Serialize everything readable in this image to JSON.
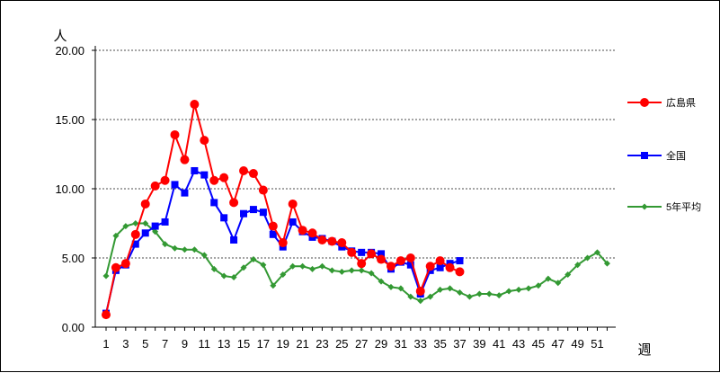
{
  "chart_data": {
    "type": "line",
    "y_unit_label": "人",
    "x_unit_label": "週",
    "ylim": [
      0,
      20
    ],
    "y_ticks": [
      "0.00",
      "5.00",
      "10.00",
      "15.00",
      "20.00"
    ],
    "x_ticks": [
      "1",
      "3",
      "5",
      "7",
      "9",
      "11",
      "13",
      "15",
      "17",
      "19",
      "21",
      "23",
      "25",
      "27",
      "29",
      "31",
      "33",
      "35",
      "37",
      "39",
      "41",
      "43",
      "45",
      "47",
      "49",
      "51"
    ],
    "xlim": [
      1,
      52
    ],
    "grid": "horizontal dashed",
    "legend_position": "right",
    "series": [
      {
        "name": "広島県",
        "color": "#ff0000",
        "marker": "circle",
        "x": [
          1,
          2,
          3,
          4,
          5,
          6,
          7,
          8,
          9,
          10,
          11,
          12,
          13,
          14,
          15,
          16,
          17,
          18,
          19,
          20,
          21,
          22,
          23,
          24,
          25,
          26,
          27,
          28,
          29,
          30,
          31,
          32,
          33,
          34,
          35,
          36,
          37
        ],
        "values": [
          0.9,
          4.3,
          4.6,
          6.7,
          8.9,
          10.2,
          10.6,
          13.9,
          12.1,
          16.1,
          13.5,
          10.6,
          10.8,
          9.0,
          11.3,
          11.1,
          9.9,
          7.3,
          6.1,
          8.9,
          7.0,
          6.8,
          6.3,
          6.2,
          6.1,
          5.4,
          4.6,
          5.3,
          4.9,
          4.4,
          4.8,
          5.0,
          2.6,
          4.4,
          4.8,
          4.3,
          4.0
        ]
      },
      {
        "name": "全国",
        "color": "#0000ff",
        "marker": "square",
        "x": [
          1,
          2,
          3,
          4,
          5,
          6,
          7,
          8,
          9,
          10,
          11,
          12,
          13,
          14,
          15,
          16,
          17,
          18,
          19,
          20,
          21,
          22,
          23,
          24,
          25,
          26,
          27,
          28,
          29,
          30,
          31,
          32,
          33,
          34,
          35,
          36,
          37
        ],
        "values": [
          1.0,
          4.1,
          4.5,
          6.0,
          6.8,
          7.3,
          7.6,
          10.3,
          9.7,
          11.3,
          11.0,
          9.0,
          7.9,
          6.3,
          8.2,
          8.5,
          8.3,
          6.7,
          5.8,
          7.6,
          6.9,
          6.5,
          6.4,
          6.2,
          5.8,
          5.5,
          5.4,
          5.4,
          5.3,
          4.2,
          4.7,
          4.5,
          2.4,
          4.1,
          4.3,
          4.6,
          4.8
        ]
      },
      {
        "name": "5年平均",
        "color": "#339933",
        "marker": "diamond",
        "x": [
          1,
          2,
          3,
          4,
          5,
          6,
          7,
          8,
          9,
          10,
          11,
          12,
          13,
          14,
          15,
          16,
          17,
          18,
          19,
          20,
          21,
          22,
          23,
          24,
          25,
          26,
          27,
          28,
          29,
          30,
          31,
          32,
          33,
          34,
          35,
          36,
          37,
          38,
          39,
          40,
          41,
          42,
          43,
          44,
          45,
          46,
          47,
          48,
          49,
          50,
          51,
          52
        ],
        "values": [
          3.7,
          6.6,
          7.3,
          7.5,
          7.5,
          6.9,
          6.0,
          5.7,
          5.6,
          5.6,
          5.2,
          4.2,
          3.7,
          3.6,
          4.3,
          4.9,
          4.5,
          3.0,
          3.8,
          4.4,
          4.4,
          4.2,
          4.4,
          4.1,
          4.0,
          4.1,
          4.1,
          3.9,
          3.3,
          2.9,
          2.8,
          2.2,
          1.9,
          2.2,
          2.7,
          2.8,
          2.5,
          2.2,
          2.4,
          2.4,
          2.3,
          2.6,
          2.7,
          2.8,
          3.0,
          3.5,
          3.2,
          3.8,
          4.5,
          5.0,
          5.4,
          4.6
        ]
      }
    ]
  }
}
